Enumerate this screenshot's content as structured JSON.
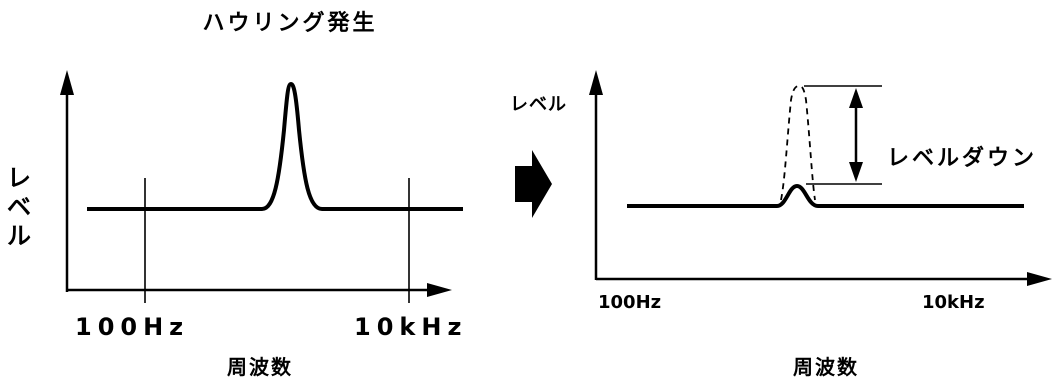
{
  "left_panel": {
    "title": "ハウリング発生",
    "y_label_chars": [
      "レ",
      "ベ",
      "ル"
    ],
    "tick_low": "100Hz",
    "tick_high": "10kHz",
    "x_label": "周波数"
  },
  "right_panel": {
    "y_label": "レベル",
    "tick_low": "100Hz",
    "tick_high": "10kHz",
    "x_label": "周波数",
    "annotation": "レベルダウン"
  },
  "colors": {
    "ink": "#000000",
    "background": "#ffffff"
  },
  "icons": {
    "transition": "right-arrow-icon"
  }
}
